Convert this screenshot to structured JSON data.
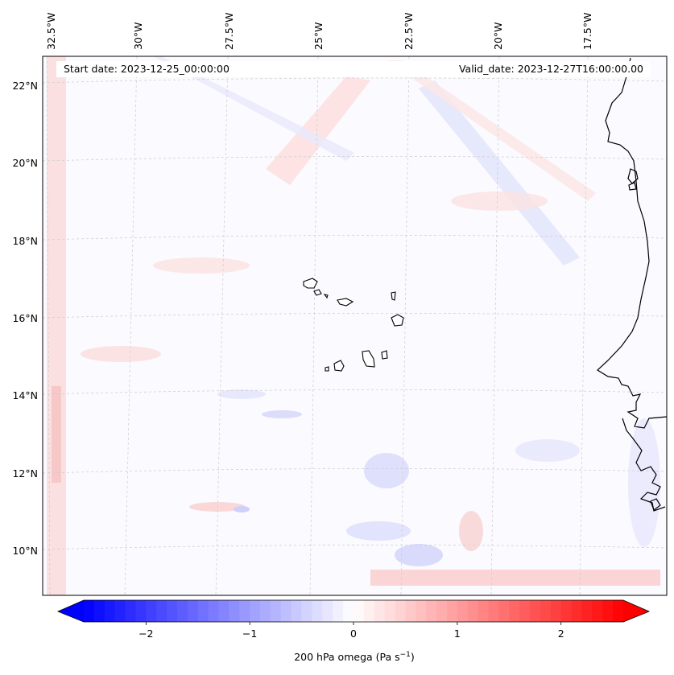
{
  "map": {
    "start_date": "Start date: 2023-12-25_00:00:00",
    "valid_date": "Valid_date: 2023-12-27T16:00:00.00",
    "lon_labels": [
      "32.5°W",
      "30°W",
      "27.5°W",
      "25°W",
      "22.5°W",
      "20°W",
      "17.5°W"
    ],
    "lat_labels": [
      "22°N",
      "20°N",
      "18°N",
      "16°N",
      "14°N",
      "12°N",
      "10°N"
    ],
    "field": "200 hPa omega"
  },
  "colorbar": {
    "label": "200 hPa omega (Pa s",
    "label_sup": "−1",
    "label_end": ")",
    "ticks": [
      "−2",
      "−1",
      "0",
      "1",
      "2"
    ],
    "tick_values": [
      -2,
      -1,
      0,
      1,
      2
    ],
    "vmin": -2.6,
    "vmax": 2.6,
    "levels": 52,
    "low_color": "#0000ff",
    "mid_color": "#ffffff",
    "high_color": "#ff0000"
  }
}
